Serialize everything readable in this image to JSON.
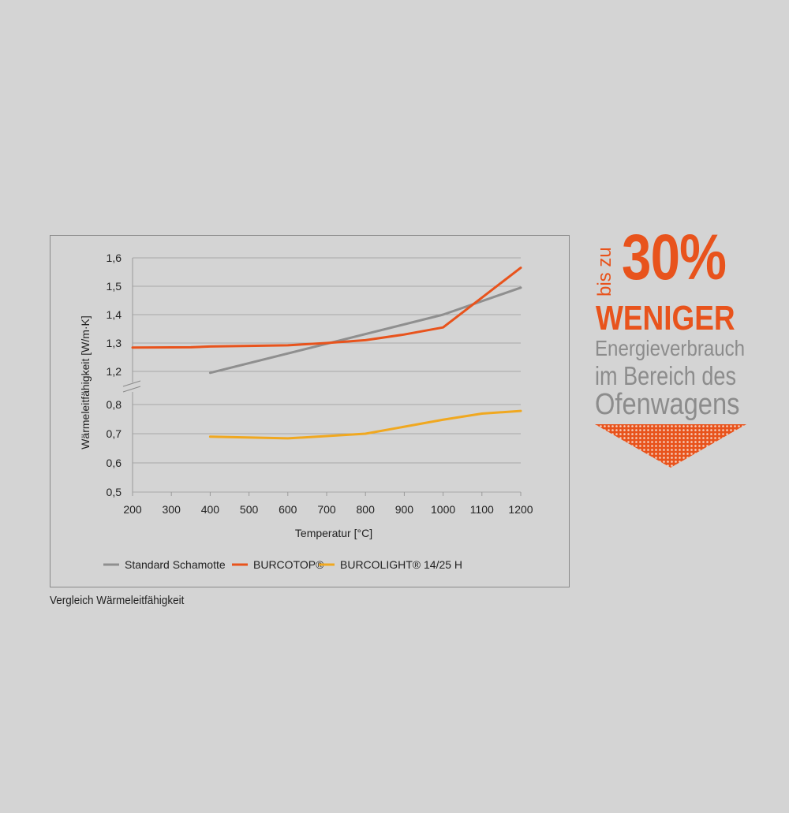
{
  "chart_data": {
    "type": "line",
    "xlabel": "Temperatur [°C]",
    "ylabel": "Wärmeleitfähigkeit [W/m·K]",
    "x_ticks": [
      200,
      300,
      400,
      500,
      600,
      700,
      800,
      900,
      1000,
      1100,
      1200
    ],
    "x_tick_labels": [
      "200",
      "300",
      "400",
      "500",
      "600",
      "700",
      "800",
      "900",
      "1000",
      "1100",
      "1200"
    ],
    "xlim": [
      200,
      1200
    ],
    "y_ticks": [
      0.5,
      0.6,
      0.7,
      0.8,
      1.2,
      1.3,
      1.4,
      1.5,
      1.6
    ],
    "y_tick_labels": [
      "0,5",
      "0,6",
      "0,7",
      "0,8",
      "1,2",
      "1,3",
      "1,4",
      "1,5",
      "1,6"
    ],
    "axis_break": "between 0,8 and 1,2",
    "grid": "horizontal",
    "legend_position": "bottom",
    "series": [
      {
        "name": "Standard Schamotte",
        "color": "#8f8f8f",
        "x": [
          400,
          1000,
          1200
        ],
        "y": [
          1.195,
          1.4,
          1.495
        ]
      },
      {
        "name": "BURCOTOP®",
        "color": "#e8531c",
        "x": [
          200,
          350,
          400,
          600,
          700,
          800,
          900,
          1000,
          1100,
          1200
        ],
        "y": [
          1.284,
          1.285,
          1.288,
          1.292,
          1.3,
          1.31,
          1.33,
          1.355,
          1.46,
          1.565
        ]
      },
      {
        "name": "BURCOLIGHT® 14/25 H",
        "color": "#f0a820",
        "x": [
          400,
          600,
          700,
          800,
          900,
          1000,
          1100,
          1200
        ],
        "y": [
          0.69,
          0.684,
          0.692,
          0.7,
          0.724,
          0.748,
          0.769,
          0.778
        ]
      }
    ]
  },
  "caption": "Vergleich Wärmeleitfähigkeit",
  "promo": {
    "prefix": "bis zu",
    "percent": "30%",
    "headline": "WENIGER",
    "line1": "Energieverbrauch",
    "line2": "im Bereich des",
    "line3": "Ofenwagens",
    "accent_color": "#e8531c",
    "text_color": "#8c8c8c",
    "arrow": "down-arrow-dotted-icon"
  }
}
